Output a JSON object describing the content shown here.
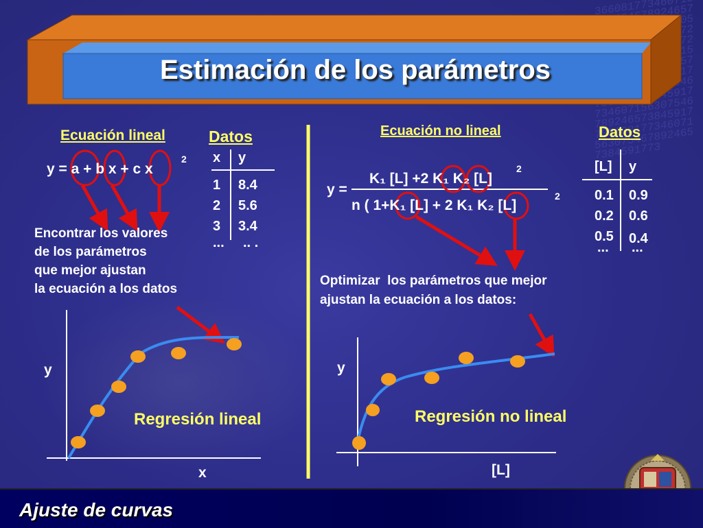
{
  "slide": {
    "title": "Estimación de los parámetros",
    "footer": "Ajuste de curvas"
  },
  "left": {
    "equation_heading": "Ecuación lineal",
    "data_heading": "Datos",
    "equation": "y = a + b x + c x",
    "equation_exponent": "2",
    "table": {
      "headers": [
        "x",
        "y"
      ],
      "rows": [
        [
          "1",
          "8.4"
        ],
        [
          "2",
          "5.6"
        ],
        [
          "3",
          "3.4"
        ],
        [
          "...",
          ".. ."
        ]
      ]
    },
    "note_lines": [
      "Encontrar los valores",
      "de los parámetros",
      "que mejor ajustan",
      "la ecuación a los datos"
    ],
    "axis_y": "y",
    "axis_x": "x",
    "regression_label": "Regresión lineal"
  },
  "right": {
    "equation_heading": "Ecuación no lineal",
    "data_heading": "Datos",
    "eq_lhs": "y =",
    "eq_numerator": "K₁ [L] +2 K₁ K₂ [L]",
    "eq_numerator_exponent": "2",
    "eq_denominator": "n ( 1+K₁ [L] + 2 K₁ K₂ [L]",
    "eq_denominator_exponent": "2",
    "table": {
      "headers": [
        "[L]",
        "y"
      ],
      "rows": [
        [
          "0.1",
          "0.9"
        ],
        [
          "0.2",
          "0.6"
        ],
        [
          "0.5",
          "0.4"
        ],
        [
          "...",
          "..."
        ]
      ]
    },
    "note_lines": [
      "Optimizar  los parámetros que mejor",
      "ajustan la ecuación a los datos:"
    ],
    "axis_y": "y",
    "axis_x": "[L]",
    "regression_label": "Regresión no lineal"
  },
  "colors": {
    "background": "#2e2e8c",
    "title_frame": "#c06010",
    "title_panel": "#3a7ad8",
    "heading_yellow": "#ffff66",
    "arrow_red": "#e01010",
    "point_orange": "#f5a020",
    "curve_blue": "#3a8cf0"
  }
}
